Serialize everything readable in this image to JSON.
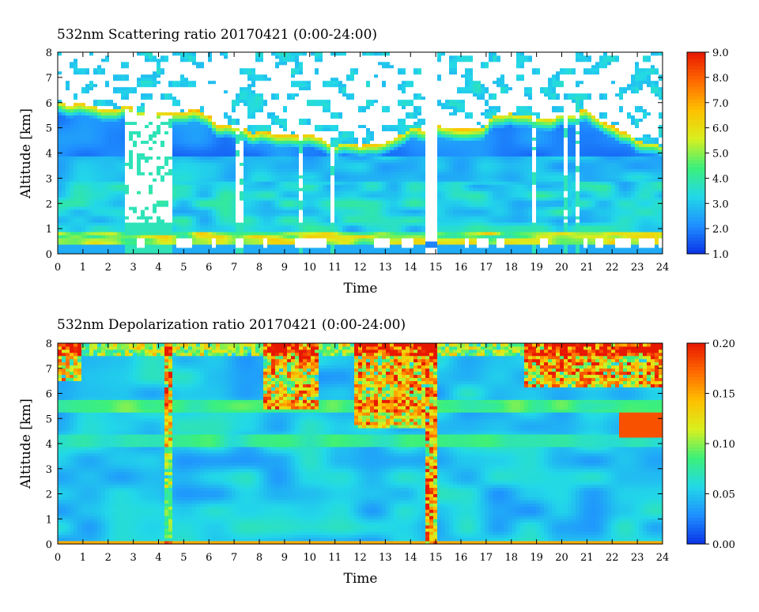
{
  "chart_data": [
    {
      "type": "heatmap",
      "title": "532nm Scattering ratio  20170421 (0:00-24:00)",
      "xlabel": "Time",
      "ylabel": "Altitude [km]",
      "xlim": [
        0,
        24
      ],
      "ylim": [
        0,
        8
      ],
      "x_ticks": [
        "0",
        "1",
        "2",
        "3",
        "4",
        "5",
        "6",
        "7",
        "8",
        "9",
        "10",
        "11",
        "12",
        "13",
        "14",
        "15",
        "16",
        "17",
        "18",
        "19",
        "20",
        "21",
        "22",
        "23",
        "24"
      ],
      "y_ticks": [
        "0",
        "1",
        "2",
        "3",
        "4",
        "5",
        "6",
        "7",
        "8"
      ],
      "colorbar": {
        "range": [
          1.0,
          9.0
        ],
        "ticks": [
          "1.0",
          "2.0",
          "3.0",
          "4.0",
          "5.0",
          "6.0",
          "7.0",
          "8.0",
          "9.0"
        ],
        "colors": [
          "#0a32e6",
          "#1f8fff",
          "#22d8e8",
          "#3cf07a",
          "#d8f020",
          "#ffc000",
          "#ff6a00",
          "#e81800"
        ]
      },
      "saturated_color": "#ffffff",
      "features": {
        "cloud_base_km": [
          [
            0,
            6.0
          ],
          [
            1,
            5.9
          ],
          [
            2,
            5.9
          ],
          [
            3,
            5.8
          ],
          [
            4,
            5.6
          ],
          [
            5,
            5.7
          ],
          [
            6,
            5.4
          ],
          [
            7,
            5.0
          ],
          [
            8,
            4.9
          ],
          [
            9,
            4.6
          ],
          [
            10,
            4.6
          ],
          [
            11,
            4.3
          ],
          [
            12,
            4.2
          ],
          [
            13,
            4.5
          ],
          [
            14,
            4.9
          ],
          [
            15,
            5.0
          ],
          [
            16,
            5.0
          ],
          [
            17,
            5.2
          ],
          [
            18,
            5.6
          ],
          [
            19,
            5.5
          ],
          [
            20,
            5.4
          ],
          [
            21,
            5.6
          ],
          [
            22,
            5.2
          ],
          [
            23,
            4.4
          ],
          [
            24,
            4.3
          ]
        ],
        "boundary_layer_top_km": 0.9,
        "gap_hours": [
          14.6,
          15.1
        ]
      }
    },
    {
      "type": "heatmap",
      "title": "532nm Depolarization ratio  20170421 (0:00-24:00)",
      "xlabel": "Time",
      "ylabel": "Altitude [km]",
      "xlim": [
        0,
        24
      ],
      "ylim": [
        0,
        8
      ],
      "x_ticks": [
        "0",
        "1",
        "2",
        "3",
        "4",
        "5",
        "6",
        "7",
        "8",
        "9",
        "10",
        "11",
        "12",
        "13",
        "14",
        "15",
        "16",
        "17",
        "18",
        "19",
        "20",
        "21",
        "22",
        "23",
        "24"
      ],
      "y_ticks": [
        "0",
        "1",
        "2",
        "3",
        "4",
        "5",
        "6",
        "7",
        "8"
      ],
      "colorbar": {
        "range": [
          0.0,
          0.2
        ],
        "ticks": [
          "0.00",
          "0.05",
          "0.10",
          "0.15",
          "0.20"
        ],
        "colors": [
          "#0a32e6",
          "#1f8fff",
          "#22d8e8",
          "#3cf07a",
          "#d8f020",
          "#ffc000",
          "#ff6a00",
          "#e81800"
        ]
      },
      "features": {
        "high_depol_layer_km": [
          4.3,
          5.2
        ],
        "high_depol_layer_hours": [
          22.3,
          24
        ],
        "noise_column_hours": [
          14.6,
          15.1
        ]
      }
    }
  ]
}
